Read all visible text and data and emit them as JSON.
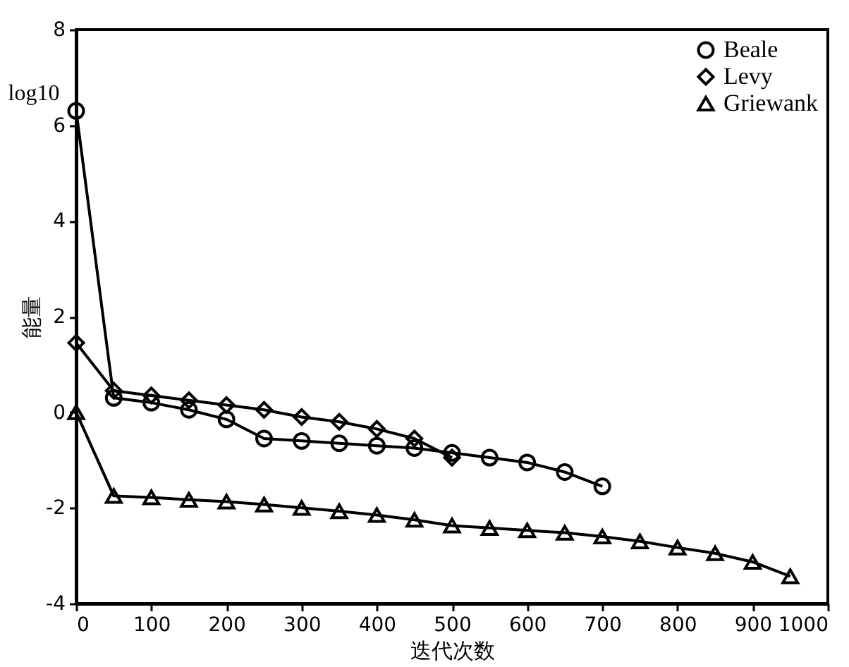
{
  "chart_data": {
    "type": "line",
    "xlabel": "迭代次数",
    "ylabel": "能量",
    "annotations": [
      "log10"
    ],
    "xlim": [
      0,
      1000
    ],
    "ylim": [
      -4,
      8
    ],
    "xticks": [
      0,
      100,
      200,
      300,
      400,
      500,
      600,
      700,
      800,
      900,
      {
        "value": 1000,
        "label": "1000"
      }
    ],
    "yticks": [
      -4,
      -2,
      0,
      2,
      4,
      6,
      8
    ],
    "grid": false,
    "legend": "top right",
    "line_style": "solid",
    "series": [
      {
        "name": "Beale",
        "color": "#000000",
        "marker": "circle",
        "x": [
          0,
          50,
          100,
          150,
          200,
          250,
          300,
          350,
          400,
          450,
          500,
          550,
          600,
          650,
          700
        ],
        "values": [
          6.3,
          0.3,
          0.2,
          0.05,
          -0.15,
          -0.55,
          -0.6,
          -0.65,
          -0.7,
          -0.75,
          -0.85,
          -0.95,
          -1.05,
          -1.25,
          -1.55
        ]
      },
      {
        "name": "Levy",
        "color": "#000000",
        "marker": "diamond",
        "x": [
          0,
          50,
          100,
          150,
          200,
          250,
          300,
          350,
          400,
          450,
          500
        ],
        "values": [
          1.45,
          0.45,
          0.35,
          0.25,
          0.15,
          0.05,
          -0.1,
          -0.2,
          -0.35,
          -0.55,
          -0.95
        ]
      },
      {
        "name": "Griewank",
        "color": "#000000",
        "marker": "triangle",
        "x": [
          0,
          50,
          100,
          150,
          200,
          250,
          300,
          350,
          400,
          450,
          500,
          550,
          600,
          650,
          700,
          750,
          800,
          850,
          900,
          950
        ],
        "values": [
          0,
          -1.75,
          -1.78,
          -1.83,
          -1.87,
          -1.93,
          -2.0,
          -2.07,
          -2.15,
          -2.25,
          -2.37,
          -2.42,
          -2.47,
          -2.52,
          -2.6,
          -2.7,
          -2.83,
          -2.95,
          -3.13,
          -3.43
        ]
      }
    ]
  }
}
